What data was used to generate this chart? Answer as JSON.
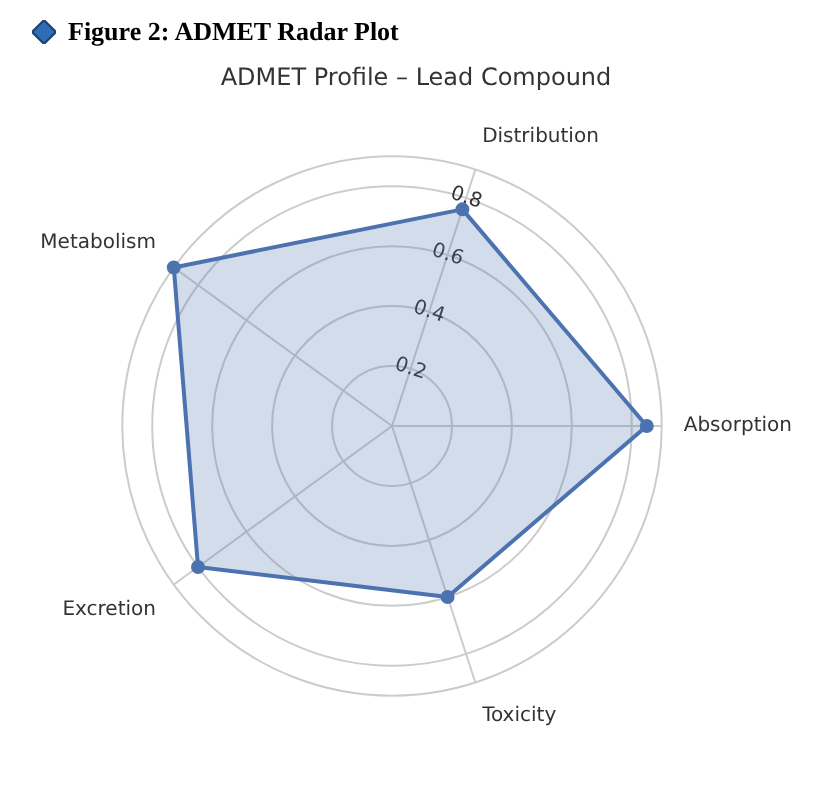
{
  "chart_data": {
    "type": "radar",
    "title": "Figure 2: ADMET Radar Plot",
    "subtitle": "ADMET Profile – Lead Compound",
    "categories": [
      "Distribution",
      "Absorption",
      "Toxicity",
      "Excretion",
      "Metabolism"
    ],
    "series": [
      {
        "color": "#4c72b0",
        "values": [
          0.76,
          0.85,
          0.6,
          0.8,
          0.9
        ]
      }
    ],
    "ylim": [
      0,
      0.9
    ],
    "yticks": [
      0.2,
      0.4,
      0.6,
      0.8
    ],
    "grid": true,
    "marker": "circle",
    "line_style": "solid"
  }
}
